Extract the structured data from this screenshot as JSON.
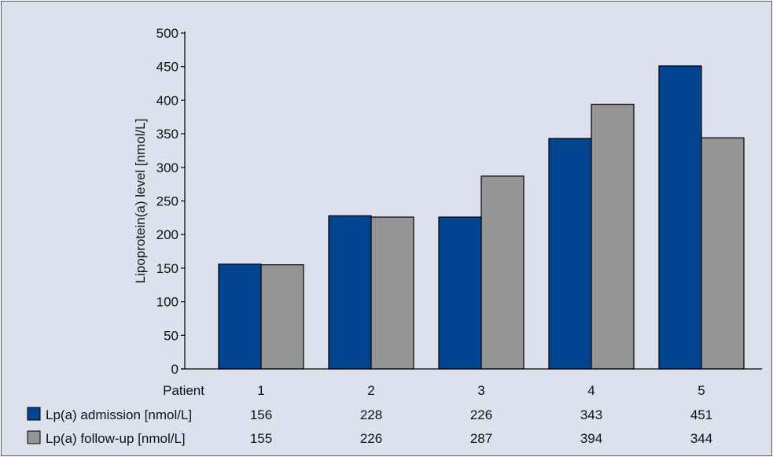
{
  "chart_data": {
    "type": "bar",
    "title": "",
    "xlabel": "",
    "ylabel": "Lipoprotein(a) level [nmol/L]",
    "ylim": [
      0,
      500
    ],
    "yticks": [
      0,
      50,
      100,
      150,
      200,
      250,
      300,
      350,
      400,
      450,
      500
    ],
    "grid": false,
    "legend": "data-table-left",
    "categories": [
      "1",
      "2",
      "3",
      "4",
      "5"
    ],
    "category_row_label": "Patient",
    "series": [
      {
        "name": "Lp(a) admission [nmol/L]",
        "color": "#034591",
        "values": [
          156,
          228,
          226,
          343,
          451
        ]
      },
      {
        "name": "Lp(a) follow-up [nmol/L]",
        "color": "#959595",
        "values": [
          155,
          226,
          287,
          394,
          344
        ]
      }
    ]
  }
}
